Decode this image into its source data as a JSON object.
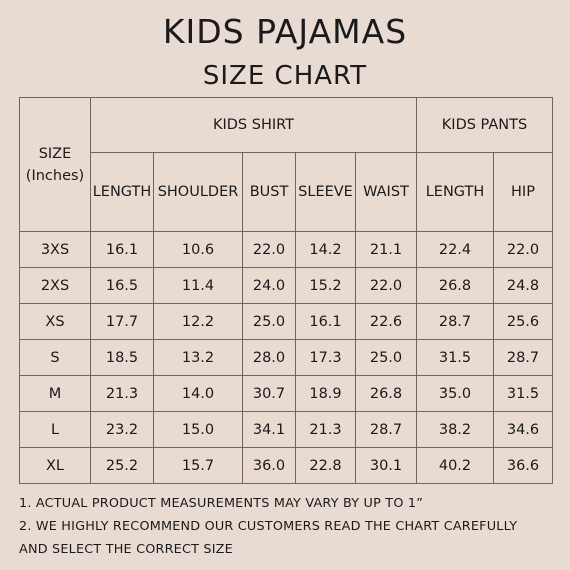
{
  "title": "KIDS PAJAMAS",
  "subtitle": "SIZE CHART",
  "table": {
    "size_header_line1": "SIZE",
    "size_header_line2": "(Inches)",
    "group_shirt": "KIDS SHIRT",
    "group_pants": "KIDS PANTS",
    "columns": [
      "LENGTH",
      "SHOULDER",
      "BUST",
      "SLEEVE",
      "WAIST",
      "LENGTH",
      "HIP"
    ],
    "rows": [
      {
        "size": "3XS",
        "values": [
          "16.1",
          "10.6",
          "22.0",
          "14.2",
          "21.1",
          "22.4",
          "22.0"
        ]
      },
      {
        "size": "2XS",
        "values": [
          "16.5",
          "11.4",
          "24.0",
          "15.2",
          "22.0",
          "26.8",
          "24.8"
        ]
      },
      {
        "size": "XS",
        "values": [
          "17.7",
          "12.2",
          "25.0",
          "16.1",
          "22.6",
          "28.7",
          "25.6"
        ]
      },
      {
        "size": "S",
        "values": [
          "18.5",
          "13.2",
          "28.0",
          "17.3",
          "25.0",
          "31.5",
          "28.7"
        ]
      },
      {
        "size": "M",
        "values": [
          "21.3",
          "14.0",
          "30.7",
          "18.9",
          "26.8",
          "35.0",
          "31.5"
        ]
      },
      {
        "size": "L",
        "values": [
          "23.2",
          "15.0",
          "34.1",
          "21.3",
          "28.7",
          "38.2",
          "34.6"
        ]
      },
      {
        "size": "XL",
        "values": [
          "25.2",
          "15.7",
          "36.0",
          "22.8",
          "30.1",
          "40.2",
          "36.6"
        ]
      }
    ]
  },
  "notes": [
    "1. ACTUAL PRODUCT MEASUREMENTS MAY VARY BY UP TO 1”",
    "2. WE HIGHLY RECOMMEND OUR CUSTOMERS READ THE CHART CAREFULLY",
    "AND SELECT THE CORRECT SIZE"
  ],
  "colors": {
    "background": "#e8dcd2",
    "text": "#1a1a1a",
    "border": "#6e6660"
  }
}
